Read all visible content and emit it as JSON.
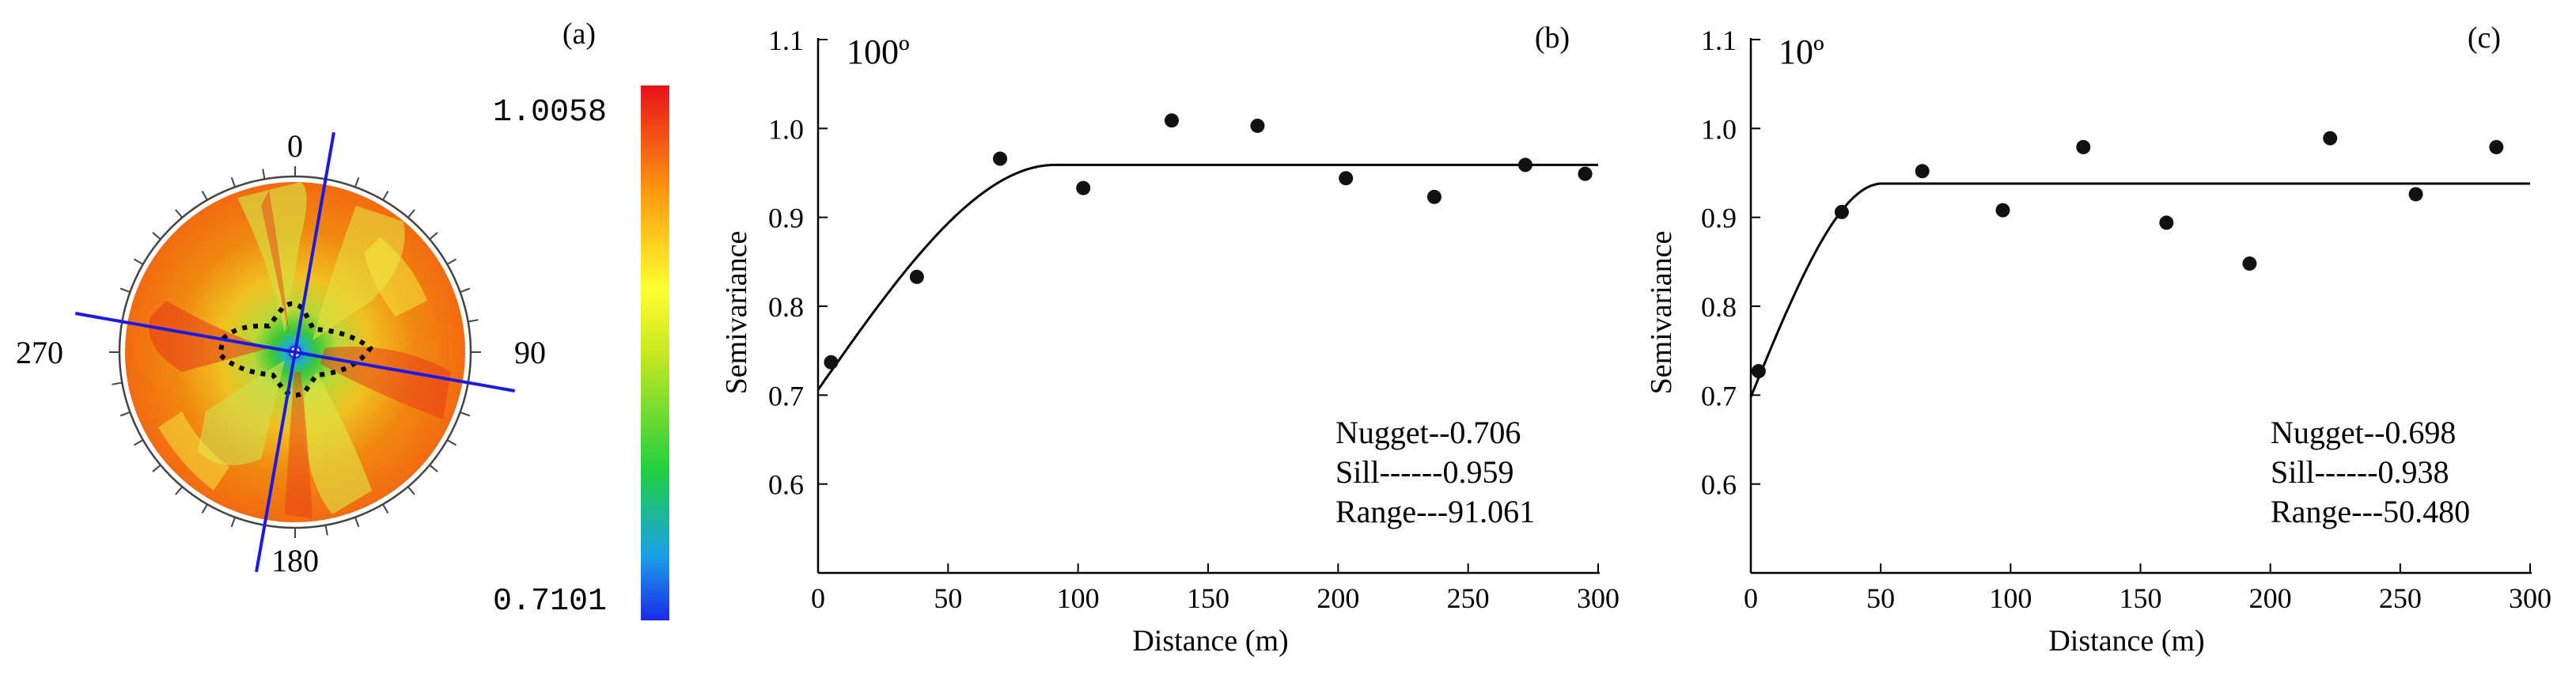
{
  "panel_a": {
    "label": "(a)",
    "compass": {
      "top": "0",
      "right": "90",
      "bottom": "180",
      "left": "270"
    },
    "colorbar": {
      "max_label": "1.0058",
      "min_label": "0.7101"
    },
    "line_colors": {
      "axes": "#1a1ae6",
      "contour": "#000000"
    },
    "axes_azimuths_deg": [
      10,
      100
    ]
  },
  "chart_data": [
    {
      "type": "scatter",
      "panel_label": "(b)",
      "direction_label": "100º",
      "xlabel": "Distance (m)",
      "ylabel": "Semivariance",
      "xlim": [
        0,
        300
      ],
      "ylim": [
        0.5,
        1.1
      ],
      "xticks": [
        "0",
        "50",
        "100",
        "150",
        "200",
        "250",
        "300"
      ],
      "yticks": [
        "0.6",
        "0.7",
        "0.8",
        "0.9",
        "1.0",
        "1.1"
      ],
      "points": {
        "x": [
          5,
          38,
          70,
          102,
          136,
          169,
          203,
          237,
          272,
          295
        ],
        "y": [
          0.737,
          0.833,
          0.966,
          0.933,
          1.009,
          1.003,
          0.944,
          0.923,
          0.959,
          0.949
        ]
      },
      "model": {
        "kind": "spherical",
        "nugget": 0.706,
        "sill": 0.959,
        "range": 91.061
      },
      "annotations": [
        "Nugget--0.706",
        "Sill------0.959",
        "Range---91.061"
      ]
    },
    {
      "type": "scatter",
      "panel_label": "(c)",
      "direction_label": "10º",
      "xlabel": "Distance (m)",
      "ylabel": "Semivariance",
      "xlim": [
        0,
        300
      ],
      "ylim": [
        0.5,
        1.1
      ],
      "xticks": [
        "0",
        "50",
        "100",
        "150",
        "200",
        "250",
        "300"
      ],
      "yticks": [
        "0.6",
        "0.7",
        "0.8",
        "0.9",
        "1.0",
        "1.1"
      ],
      "points": {
        "x": [
          3,
          35,
          66,
          97,
          128,
          160,
          192,
          223,
          256,
          287
        ],
        "y": [
          0.727,
          0.906,
          0.952,
          0.908,
          0.979,
          0.894,
          0.848,
          0.989,
          0.926,
          0.979
        ]
      },
      "model": {
        "kind": "spherical",
        "nugget": 0.698,
        "sill": 0.938,
        "range": 50.48
      },
      "annotations": [
        "Nugget--0.698",
        "Sill------0.938",
        "Range---50.480"
      ]
    }
  ]
}
